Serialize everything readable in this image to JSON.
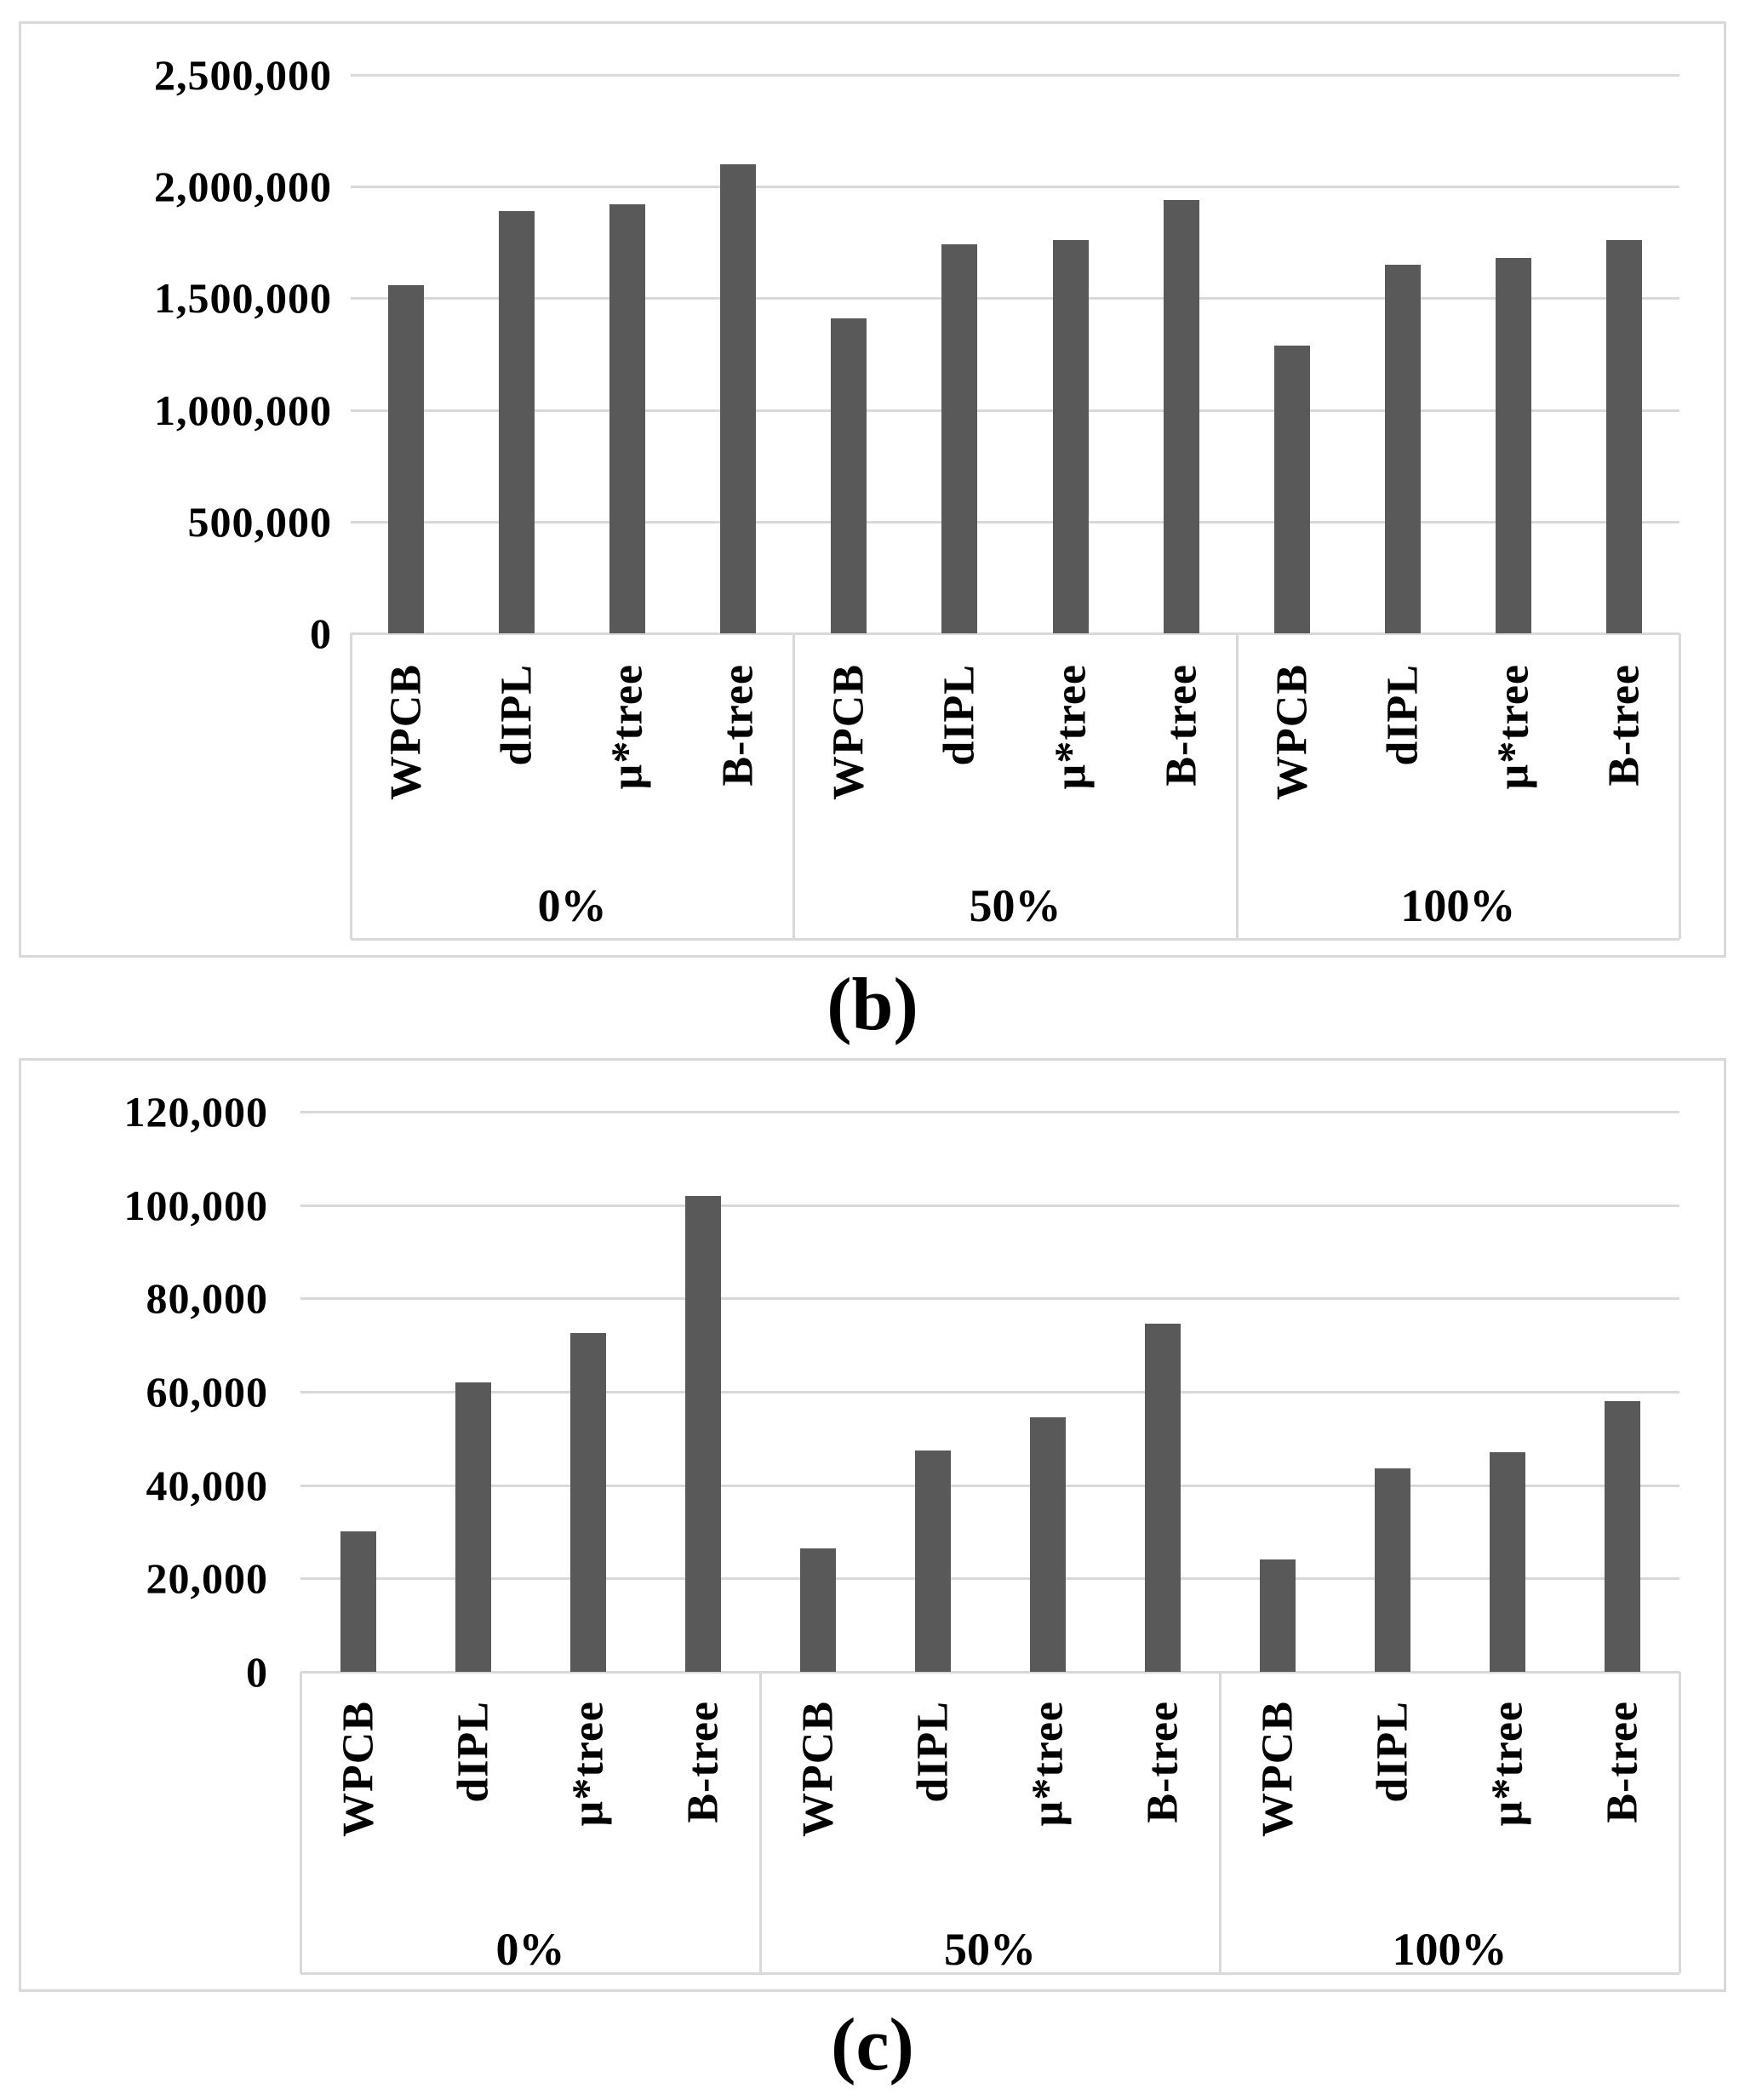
{
  "figure": {
    "background_color": "#ffffff",
    "text_color": "#000000",
    "captions": {
      "b": "(b)",
      "c": "(c)"
    }
  },
  "chart_data": [
    {
      "type": "bar",
      "caption": "(b)",
      "bar_color": "#595959",
      "grid_color": "#d9d9d9",
      "grid": true,
      "legend": false,
      "ylim": [
        0,
        2500000
      ],
      "ytick_step": 500000,
      "ytick_labels": [
        "2,500,000",
        "2,000,000",
        "1,500,000",
        "1,000,000",
        "500,000",
        "0"
      ],
      "categories": [
        "WPCB",
        "dIPL",
        "µ*tree",
        "B-tree"
      ],
      "groups": [
        {
          "label": "0%",
          "values": [
            1560000,
            1890000,
            1920000,
            2100000
          ]
        },
        {
          "label": "50%",
          "values": [
            1410000,
            1740000,
            1760000,
            1940000
          ]
        },
        {
          "label": "100%",
          "values": [
            1290000,
            1650000,
            1680000,
            1760000
          ]
        }
      ]
    },
    {
      "type": "bar",
      "caption": "(c)",
      "bar_color": "#595959",
      "grid_color": "#d9d9d9",
      "grid": true,
      "legend": false,
      "ylim": [
        0,
        120000
      ],
      "ytick_step": 20000,
      "ytick_labels": [
        "120,000",
        "100,000",
        "80,000",
        "60,000",
        "40,000",
        "20,000",
        "0"
      ],
      "categories": [
        "WPCB",
        "dIPL",
        "µ*tree",
        "B-tree"
      ],
      "groups": [
        {
          "label": "0%",
          "values": [
            30000,
            62000,
            72500,
            102000
          ]
        },
        {
          "label": "50%",
          "values": [
            26500,
            47500,
            54500,
            74500
          ]
        },
        {
          "label": "100%",
          "values": [
            24000,
            43500,
            47000,
            58000
          ]
        }
      ]
    }
  ]
}
